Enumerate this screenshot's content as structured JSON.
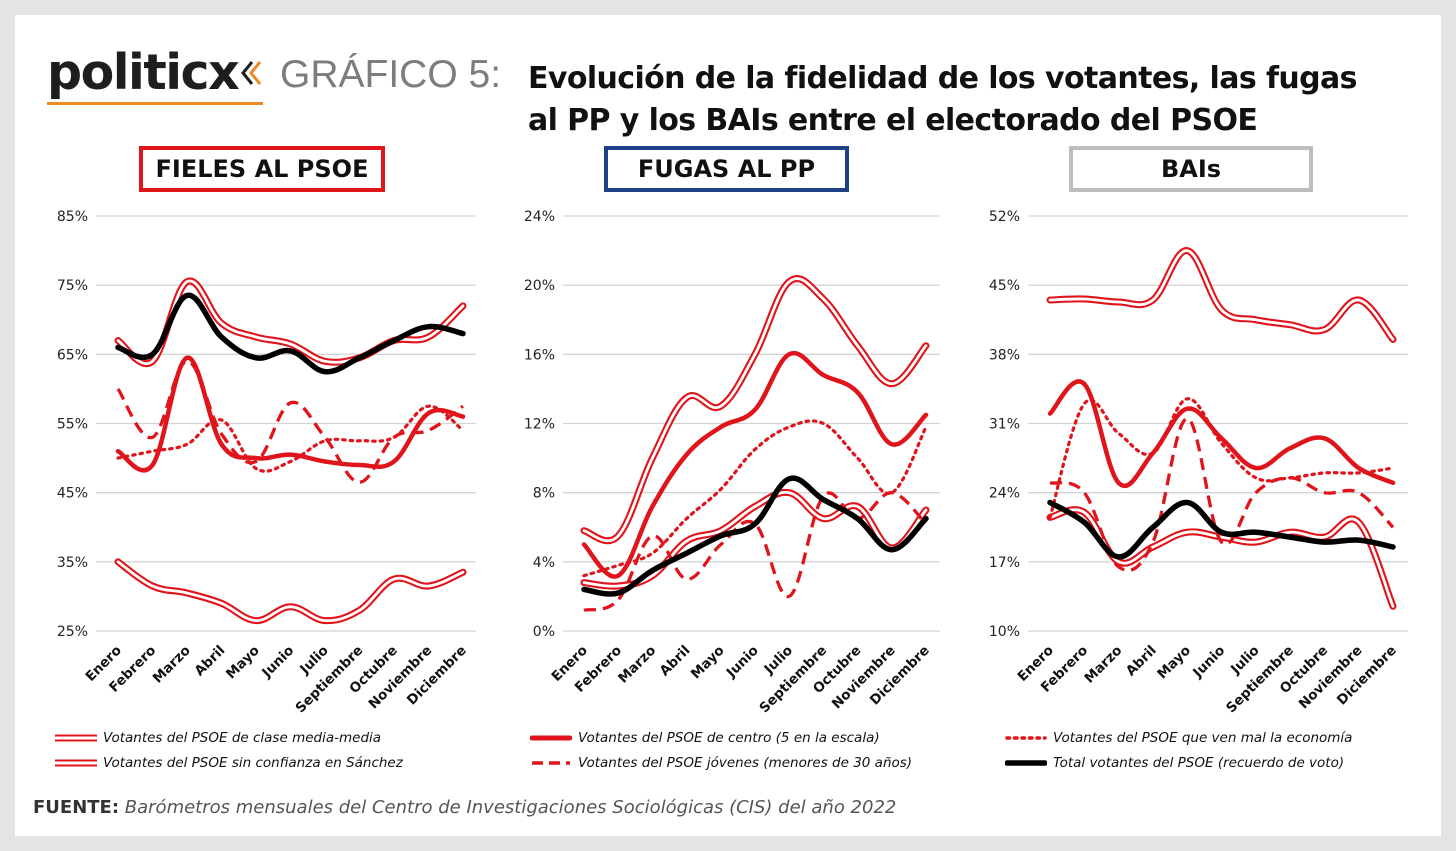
{
  "header": {
    "logo": "politicx",
    "grafico": "GRÁFICO 5:",
    "title_line1": "Evolución de la fidelidad de los votantes, las fugas",
    "title_line2": "al PP y los BAIs entre el electorado del PSOE"
  },
  "colors": {
    "red": "#e0141b",
    "blue": "#1f3f86",
    "gray": "#bdbdbd",
    "black": "#000000",
    "accent": "#f08a24"
  },
  "legend": {
    "media_media": "Votantes del PSOE de clase media-media",
    "sin_confianza": "Votantes del PSOE sin confianza en Sánchez",
    "centro": "Votantes del PSOE de centro (5 en la escala)",
    "jovenes": "Votantes del PSOE jóvenes (menores de 30 años)",
    "mal_economia": "Votantes del PSOE que ven mal la economía",
    "total": "Total votantes del PSOE (recuerdo de voto)"
  },
  "source": {
    "label": "FUENTE:",
    "text": "Barómetros mensuales del Centro de Investigaciones Sociológicas (CIS) del año 2022"
  },
  "chart_data": [
    {
      "type": "line",
      "title": "FIELES AL PSOE",
      "categories": [
        "Enero",
        "Febrero",
        "Marzo",
        "Abril",
        "Mayo",
        "Junio",
        "Julio",
        "Septiembre",
        "Octubre",
        "Noviembre",
        "Diciembre"
      ],
      "ylim": [
        25,
        85
      ],
      "yticks": [
        "25%",
        "35%",
        "45%",
        "55%",
        "65%",
        "75%",
        "85%"
      ],
      "grid": true,
      "series": [
        {
          "name": "Votantes del PSOE de clase media-media",
          "style": "double",
          "values": [
            35,
            31.5,
            30.5,
            29,
            26.5,
            28.5,
            26.5,
            28,
            32.5,
            31.5,
            33.5
          ]
        },
        {
          "name": "Votantes del PSOE sin confianza en Sánchez",
          "style": "double",
          "values": [
            67,
            64,
            75.5,
            69.5,
            67.5,
            66.5,
            64,
            64.5,
            67,
            67.5,
            72
          ]
        },
        {
          "name": "Votantes del PSOE de centro (5 en la escala)",
          "style": "solid",
          "values": [
            51,
            49,
            64.5,
            52,
            50,
            50.5,
            49.5,
            49,
            49.5,
            56.5,
            56
          ]
        },
        {
          "name": "Votantes del PSOE jóvenes (menores de 30 años)",
          "style": "dashed",
          "values": [
            60,
            53,
            64,
            53.5,
            49.5,
            58,
            53,
            46.5,
            53,
            54,
            57.5
          ]
        },
        {
          "name": "Votantes del PSOE que ven mal la economía",
          "style": "dotted",
          "values": [
            50,
            51,
            52,
            55.5,
            48.5,
            49.5,
            52.5,
            52.5,
            53,
            57.5,
            54
          ]
        },
        {
          "name": "Total votantes del PSOE (recuerdo de voto)",
          "style": "black",
          "values": [
            66,
            65,
            73.5,
            67.5,
            64.5,
            65.5,
            62.5,
            64.5,
            67,
            69,
            68
          ]
        }
      ]
    },
    {
      "type": "line",
      "title": "FUGAS AL PP",
      "categories": [
        "Enero",
        "Febrero",
        "Marzo",
        "Abril",
        "Mayo",
        "Junio",
        "Julio",
        "Septiembre",
        "Octubre",
        "Noviembre",
        "Diciembre"
      ],
      "ylim": [
        0,
        24
      ],
      "yticks": [
        "0%",
        "4%",
        "8%",
        "12%",
        "16%",
        "20%",
        "24%"
      ],
      "grid": true,
      "series": [
        {
          "name": "Votantes del PSOE de clase media-media",
          "style": "double",
          "values": [
            2.8,
            2.6,
            3.2,
            5.2,
            5.8,
            7.2,
            8,
            6.5,
            7.2,
            4.8,
            7
          ]
        },
        {
          "name": "Votantes del PSOE sin confianza en Sánchez",
          "style": "double",
          "values": [
            5.8,
            5.5,
            10,
            13.5,
            13,
            16,
            20.2,
            19.2,
            16.5,
            14.3,
            16.5
          ]
        },
        {
          "name": "Votantes del PSOE de centro (5 en la escala)",
          "style": "solid",
          "values": [
            5,
            3.2,
            7.2,
            10.2,
            11.8,
            12.8,
            16,
            14.8,
            13.8,
            10.8,
            12.5
          ]
        },
        {
          "name": "Votantes del PSOE jóvenes (menores de 30 años)",
          "style": "dashed",
          "values": [
            1.2,
            1.8,
            5.5,
            3,
            5,
            6.2,
            2,
            7.8,
            6.5,
            8,
            6.2
          ]
        },
        {
          "name": "Votantes del PSOE que ven mal la economía",
          "style": "dotted",
          "values": [
            3.2,
            3.8,
            4.5,
            6.5,
            8.2,
            10.5,
            11.8,
            12,
            10,
            8,
            11.8
          ]
        },
        {
          "name": "Total votantes del PSOE (recuerdo de voto)",
          "style": "black",
          "values": [
            2.4,
            2.2,
            3.5,
            4.5,
            5.5,
            6.2,
            8.8,
            7.6,
            6.5,
            4.7,
            6.5
          ]
        }
      ]
    },
    {
      "type": "line",
      "title": "BAIs",
      "categories": [
        "Enero",
        "Febrero",
        "Marzo",
        "Abril",
        "Mayo",
        "Junio",
        "Julio",
        "Septiembre",
        "Octubre",
        "Noviembre",
        "Diciembre"
      ],
      "ylim": [
        10,
        52
      ],
      "yticks": [
        "10%",
        "17%",
        "24%",
        "31%",
        "38%",
        "45%",
        "52%"
      ],
      "grid": true,
      "series": [
        {
          "name": "Votantes del PSOE de clase media-media",
          "style": "double",
          "values": [
            21.5,
            22,
            17,
            18.5,
            20,
            19.5,
            19,
            20,
            19.5,
            21,
            12.5
          ]
        },
        {
          "name": "Votantes del PSOE sin confianza en Sánchez",
          "style": "double",
          "values": [
            43.5,
            43.6,
            43.3,
            43.5,
            48.5,
            42.5,
            41.5,
            41,
            40.5,
            43.5,
            39.5
          ]
        },
        {
          "name": "Votantes del PSOE de centro (5 en la escala)",
          "style": "solid",
          "values": [
            32,
            35,
            25,
            28,
            32.5,
            29.5,
            26.5,
            28.5,
            29.5,
            26.5,
            25
          ]
        },
        {
          "name": "Votantes del PSOE jóvenes (menores de 30 años)",
          "style": "dashed",
          "values": [
            25,
            24,
            16.5,
            19,
            31.5,
            19,
            24,
            25.5,
            24,
            24,
            20.5
          ]
        },
        {
          "name": "Votantes del PSOE que ven mal la economía",
          "style": "dotted",
          "values": [
            21.5,
            33,
            30,
            28,
            33.5,
            29,
            25.5,
            25.5,
            26,
            26,
            26.5
          ]
        },
        {
          "name": "Total votantes del PSOE (recuerdo de voto)",
          "style": "black",
          "values": [
            23,
            21,
            17.5,
            20.5,
            23,
            20,
            20,
            19.5,
            19,
            19.2,
            18.5
          ]
        }
      ]
    }
  ]
}
